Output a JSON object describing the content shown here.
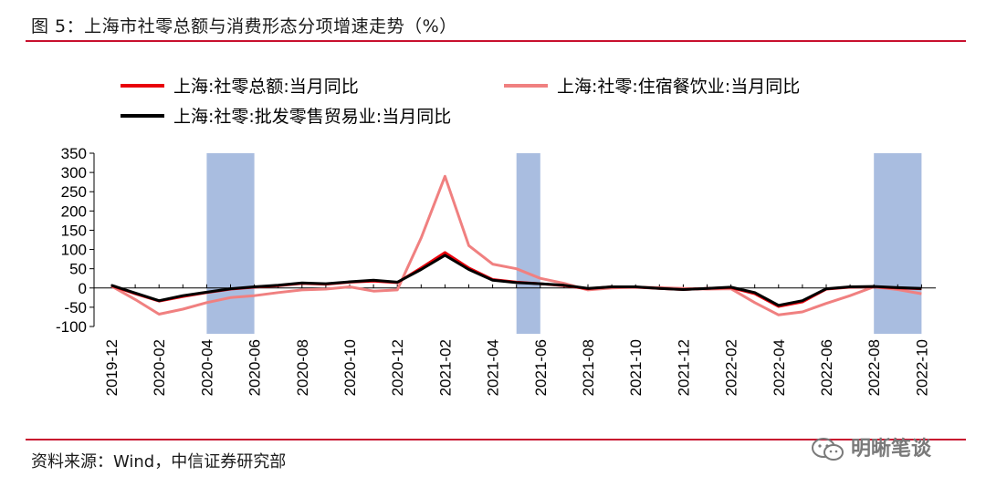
{
  "figure_title": "图 5：上海市社零总额与消费形态分项增速走势（%）",
  "source": "资料来源：Wind，中信证券研究部",
  "watermark": "明晰笔谈",
  "chart_data": {
    "type": "line",
    "title": "",
    "xlabel": "",
    "ylabel": "",
    "ylim": [
      -100,
      350
    ],
    "yticks": [
      -100,
      -50,
      0,
      50,
      100,
      150,
      200,
      250,
      300,
      350
    ],
    "legend_placement": "top",
    "x": [
      "2019-12",
      "2020-01",
      "2020-02",
      "2020-03",
      "2020-04",
      "2020-05",
      "2020-06",
      "2020-07",
      "2020-08",
      "2020-09",
      "2020-10",
      "2020-11",
      "2020-12",
      "2021-01",
      "2021-02",
      "2021-03",
      "2021-04",
      "2021-05",
      "2021-06",
      "2021-07",
      "2021-08",
      "2021-09",
      "2021-10",
      "2021-11",
      "2021-12",
      "2022-01",
      "2022-02",
      "2022-03",
      "2022-04",
      "2022-05",
      "2022-06",
      "2022-07",
      "2022-08",
      "2022-09",
      "2022-10"
    ],
    "xtick_labels": [
      "2019-12",
      "2020-02",
      "2020-04",
      "2020-06",
      "2020-08",
      "2020-10",
      "2020-12",
      "2021-02",
      "2021-04",
      "2021-06",
      "2021-08",
      "2021-10",
      "2021-12",
      "2022-02",
      "2022-04",
      "2022-06",
      "2022-08",
      "2022-10"
    ],
    "shaded_periods": [
      {
        "start": "2020-04",
        "end": "2020-06",
        "color": "#a9bde0"
      },
      {
        "start": "2021-05",
        "end": "2021-06",
        "color": "#a9bde0"
      },
      {
        "start": "2022-08",
        "end": "2022-10",
        "color": "#a9bde0"
      }
    ],
    "series": [
      {
        "name": "上海:社零总额:当月同比",
        "color": "#e8000b",
        "values": [
          6,
          -15,
          -34,
          -22,
          -12,
          -3,
          2,
          6,
          12,
          10,
          15,
          18,
          14,
          52,
          92,
          52,
          22,
          15,
          11,
          6,
          -2,
          3,
          2,
          -1,
          -4,
          -1,
          1,
          -15,
          -48,
          -36,
          -3,
          2,
          3,
          0,
          -2
        ]
      },
      {
        "name": "上海:社零:住宿餐饮业:当月同比",
        "color": "#f08080",
        "values": [
          5,
          -30,
          -68,
          -55,
          -38,
          -25,
          -20,
          -12,
          -5,
          -3,
          3,
          -8,
          -5,
          130,
          290,
          110,
          62,
          50,
          25,
          12,
          -5,
          0,
          2,
          1,
          -1,
          -3,
          -2,
          -38,
          -70,
          -62,
          -40,
          -20,
          3,
          -4,
          -15
        ]
      },
      {
        "name": "上海:社零:批发零售贸易业:当月同比",
        "color": "#000000",
        "values": [
          7,
          -13,
          -33,
          -20,
          -11,
          -2,
          3,
          7,
          13,
          11,
          16,
          20,
          15,
          48,
          85,
          48,
          20,
          14,
          11,
          7,
          -1,
          3,
          3,
          -1,
          -4,
          -1,
          2,
          -12,
          -45,
          -33,
          -2,
          3,
          4,
          1,
          -1
        ]
      }
    ]
  }
}
